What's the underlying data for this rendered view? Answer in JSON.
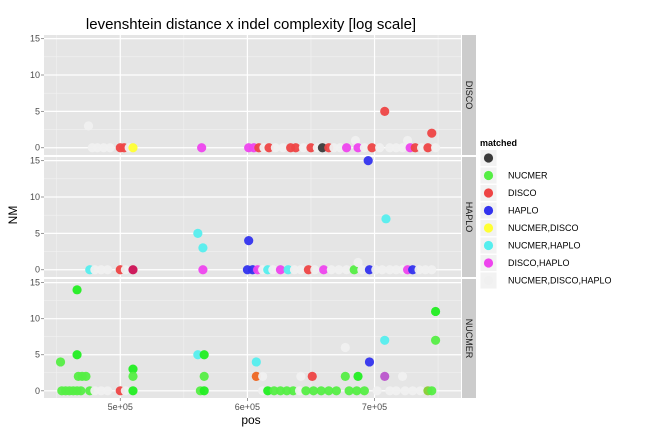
{
  "chart_data": {
    "type": "scatter",
    "title": "levenshtein distance x indel complexity [log scale]",
    "xlabel": "pos",
    "ylabel": "NM",
    "x_ticks": [
      {
        "value": 500000,
        "label": "5e+05"
      },
      {
        "value": 600000,
        "label": "6e+05"
      },
      {
        "value": 700000,
        "label": "7e+05"
      }
    ],
    "y_ticks": [
      0,
      5,
      10,
      15
    ],
    "xlim": [
      440000,
      768000
    ],
    "ylim": [
      -1,
      15.5
    ],
    "legend": {
      "title": "matched",
      "position": "right",
      "entries": [
        {
          "label": "",
          "color": "#3a3a3a"
        },
        {
          "label": "NUCMER",
          "color": "#55ee44"
        },
        {
          "label": "DISCO",
          "color": "#ee4444"
        },
        {
          "label": "HAPLO",
          "color": "#3333ee"
        },
        {
          "label": "NUCMER,DISCO",
          "color": "#ffff33"
        },
        {
          "label": "NUCMER,HAPLO",
          "color": "#55eeee"
        },
        {
          "label": "DISCO,HAPLO",
          "color": "#ee44ee"
        },
        {
          "label": "NUCMER,DISCO,HAPLO",
          "color": "#f0f0f0"
        }
      ]
    },
    "panels": [
      {
        "name": "DISCO",
        "points": [
          {
            "x": 475000,
            "y": 3,
            "color": "#f0f0f0"
          },
          {
            "x": 478000,
            "y": 0,
            "color": "#f0f0f0"
          },
          {
            "x": 482000,
            "y": 0,
            "color": "#f0f0f0"
          },
          {
            "x": 487000,
            "y": 0,
            "color": "#f0f0f0"
          },
          {
            "x": 492000,
            "y": 0,
            "color": "#f0f0f0"
          },
          {
            "x": 500000,
            "y": 0,
            "color": "#ee4444"
          },
          {
            "x": 503000,
            "y": 0,
            "color": "#ee4444"
          },
          {
            "x": 507000,
            "y": 0,
            "color": "#f0f0f0"
          },
          {
            "x": 510000,
            "y": 0,
            "color": "#ffff33"
          },
          {
            "x": 564000,
            "y": 0,
            "color": "#ee44ee"
          },
          {
            "x": 601000,
            "y": 0,
            "color": "#ee44ee"
          },
          {
            "x": 605000,
            "y": 0,
            "color": "#ee44ee"
          },
          {
            "x": 609000,
            "y": 0,
            "color": "#ee4444"
          },
          {
            "x": 613000,
            "y": 0,
            "color": "#f0f0f0"
          },
          {
            "x": 617000,
            "y": 0,
            "color": "#ee4444"
          },
          {
            "x": 622000,
            "y": 0,
            "color": "#f0f0f0"
          },
          {
            "x": 628000,
            "y": 0,
            "color": "#f0f0f0"
          },
          {
            "x": 634000,
            "y": 0,
            "color": "#ee4444"
          },
          {
            "x": 638000,
            "y": 0,
            "color": "#ee4444"
          },
          {
            "x": 644000,
            "y": 0,
            "color": "#f0f0f0"
          },
          {
            "x": 650000,
            "y": 0,
            "color": "#ee4444"
          },
          {
            "x": 655000,
            "y": 0,
            "color": "#f0f0f0"
          },
          {
            "x": 659000,
            "y": 0,
            "color": "#3a3a3a"
          },
          {
            "x": 664000,
            "y": 0,
            "color": "#ee4444"
          },
          {
            "x": 668000,
            "y": 0,
            "color": "#f0f0f0"
          },
          {
            "x": 673000,
            "y": 0,
            "color": "#f0f0f0"
          },
          {
            "x": 678000,
            "y": 0,
            "color": "#ee44ee"
          },
          {
            "x": 685000,
            "y": 1,
            "color": "#f0f0f0"
          },
          {
            "x": 687000,
            "y": 0,
            "color": "#ee44ee"
          },
          {
            "x": 692000,
            "y": 0,
            "color": "#f0f0f0"
          },
          {
            "x": 698000,
            "y": 0,
            "color": "#ee4444"
          },
          {
            "x": 704000,
            "y": 0,
            "color": "#f0f0f0"
          },
          {
            "x": 708000,
            "y": 5,
            "color": "#ee4444"
          },
          {
            "x": 712000,
            "y": 0,
            "color": "#f0f0f0"
          },
          {
            "x": 717000,
            "y": 0,
            "color": "#f0f0f0"
          },
          {
            "x": 722000,
            "y": 0,
            "color": "#f0f0f0"
          },
          {
            "x": 726000,
            "y": 1,
            "color": "#f0f0f0"
          },
          {
            "x": 728000,
            "y": 0,
            "color": "#ee44ee"
          },
          {
            "x": 732000,
            "y": 0,
            "color": "#ee4444"
          },
          {
            "x": 737000,
            "y": 0,
            "color": "#f0f0f0"
          },
          {
            "x": 742000,
            "y": 0,
            "color": "#ee4444"
          },
          {
            "x": 745000,
            "y": 2,
            "color": "#ee4444"
          },
          {
            "x": 748000,
            "y": 0,
            "color": "#f0f0f0"
          }
        ]
      },
      {
        "name": "HAPLO",
        "points": [
          {
            "x": 476000,
            "y": 0,
            "color": "#55eeee"
          },
          {
            "x": 480000,
            "y": 0,
            "color": "#f0f0f0"
          },
          {
            "x": 485000,
            "y": 0,
            "color": "#f0f0f0"
          },
          {
            "x": 490000,
            "y": 0,
            "color": "#f0f0f0"
          },
          {
            "x": 500000,
            "y": 0,
            "color": "#ee4444"
          },
          {
            "x": 504000,
            "y": 0,
            "color": "#f0f0f0"
          },
          {
            "x": 510000,
            "y": 0,
            "color": "#cc1155"
          },
          {
            "x": 561000,
            "y": 5,
            "color": "#55eeee"
          },
          {
            "x": 565000,
            "y": 3,
            "color": "#55eeee"
          },
          {
            "x": 565000,
            "y": 0,
            "color": "#ee44ee"
          },
          {
            "x": 601000,
            "y": 4,
            "color": "#3333ee"
          },
          {
            "x": 600000,
            "y": 0,
            "color": "#3333ee"
          },
          {
            "x": 604000,
            "y": 0,
            "color": "#3333ee"
          },
          {
            "x": 608000,
            "y": 0,
            "color": "#ee44ee"
          },
          {
            "x": 612000,
            "y": 0,
            "color": "#f0f0f0"
          },
          {
            "x": 616000,
            "y": 0,
            "color": "#55eeee"
          },
          {
            "x": 620000,
            "y": 0,
            "color": "#f0f0f0"
          },
          {
            "x": 626000,
            "y": 0,
            "color": "#ee44ee"
          },
          {
            "x": 632000,
            "y": 0,
            "color": "#55eeee"
          },
          {
            "x": 637000,
            "y": 0,
            "color": "#f0f0f0"
          },
          {
            "x": 642000,
            "y": 0,
            "color": "#f0f0f0"
          },
          {
            "x": 648000,
            "y": 0,
            "color": "#ee4444"
          },
          {
            "x": 653000,
            "y": 0,
            "color": "#f0f0f0"
          },
          {
            "x": 660000,
            "y": 0,
            "color": "#ee44ee"
          },
          {
            "x": 666000,
            "y": 0,
            "color": "#f0f0f0"
          },
          {
            "x": 672000,
            "y": 0,
            "color": "#f0f0f0"
          },
          {
            "x": 678000,
            "y": 0,
            "color": "#f0f0f0"
          },
          {
            "x": 684000,
            "y": 0,
            "color": "#55ee44"
          },
          {
            "x": 687000,
            "y": 1,
            "color": "#f0f0f0"
          },
          {
            "x": 690000,
            "y": 0,
            "color": "#f0f0f0"
          },
          {
            "x": 695000,
            "y": 15,
            "color": "#3333ee"
          },
          {
            "x": 696000,
            "y": 0,
            "color": "#3333ee"
          },
          {
            "x": 701000,
            "y": 0,
            "color": "#f0f0f0"
          },
          {
            "x": 706000,
            "y": 0,
            "color": "#f0f0f0"
          },
          {
            "x": 709000,
            "y": 7,
            "color": "#55eeee"
          },
          {
            "x": 712000,
            "y": 0,
            "color": "#f0f0f0"
          },
          {
            "x": 717000,
            "y": 0,
            "color": "#f0f0f0"
          },
          {
            "x": 722000,
            "y": 0,
            "color": "#f0f0f0"
          },
          {
            "x": 726000,
            "y": 0,
            "color": "#ee44ee"
          },
          {
            "x": 730000,
            "y": 0,
            "color": "#3333ee"
          },
          {
            "x": 735000,
            "y": 0,
            "color": "#f0f0f0"
          },
          {
            "x": 740000,
            "y": 0,
            "color": "#f0f0f0"
          },
          {
            "x": 745000,
            "y": 0,
            "color": "#f0f0f0"
          }
        ]
      },
      {
        "name": "NUCMER",
        "points": [
          {
            "x": 453000,
            "y": 4,
            "color": "#55ee44"
          },
          {
            "x": 454000,
            "y": 0,
            "color": "#55ee44"
          },
          {
            "x": 457000,
            "y": 0,
            "color": "#55ee44"
          },
          {
            "x": 460000,
            "y": 0,
            "color": "#55ee44"
          },
          {
            "x": 463000,
            "y": 0,
            "color": "#55ee44"
          },
          {
            "x": 466000,
            "y": 0,
            "color": "#55ee44"
          },
          {
            "x": 469000,
            "y": 0,
            "color": "#55ee44"
          },
          {
            "x": 466000,
            "y": 14,
            "color": "#22ee22"
          },
          {
            "x": 466000,
            "y": 5,
            "color": "#22ee22"
          },
          {
            "x": 467000,
            "y": 2,
            "color": "#55ee44"
          },
          {
            "x": 470000,
            "y": 2,
            "color": "#55ee44"
          },
          {
            "x": 473000,
            "y": 2,
            "color": "#55ee44"
          },
          {
            "x": 476000,
            "y": 0,
            "color": "#55ee44"
          },
          {
            "x": 480000,
            "y": 0,
            "color": "#f0f0f0"
          },
          {
            "x": 485000,
            "y": 0,
            "color": "#f0f0f0"
          },
          {
            "x": 490000,
            "y": 0,
            "color": "#f0f0f0"
          },
          {
            "x": 500000,
            "y": 0,
            "color": "#ee4444"
          },
          {
            "x": 504000,
            "y": 0,
            "color": "#f0f0f0"
          },
          {
            "x": 510000,
            "y": 3,
            "color": "#22ee22"
          },
          {
            "x": 510000,
            "y": 2,
            "color": "#55ee44"
          },
          {
            "x": 510000,
            "y": 0,
            "color": "#22ee22"
          },
          {
            "x": 561000,
            "y": 5,
            "color": "#55eeee"
          },
          {
            "x": 566000,
            "y": 5,
            "color": "#22ee22"
          },
          {
            "x": 566000,
            "y": 2,
            "color": "#55ee44"
          },
          {
            "x": 563000,
            "y": 0,
            "color": "#55ee44"
          },
          {
            "x": 566000,
            "y": 0,
            "color": "#22ee22"
          },
          {
            "x": 607000,
            "y": 4,
            "color": "#55eeee"
          },
          {
            "x": 607000,
            "y": 2,
            "color": "#ee6622"
          },
          {
            "x": 612000,
            "y": 2,
            "color": "#f0f0f0"
          },
          {
            "x": 612000,
            "y": 0,
            "color": "#f0f0f0"
          },
          {
            "x": 616000,
            "y": 0,
            "color": "#22ee22"
          },
          {
            "x": 621000,
            "y": 0,
            "color": "#55ee44"
          },
          {
            "x": 626000,
            "y": 0,
            "color": "#55ee44"
          },
          {
            "x": 631000,
            "y": 0,
            "color": "#55ee44"
          },
          {
            "x": 636000,
            "y": 0,
            "color": "#55ee44"
          },
          {
            "x": 641000,
            "y": 0,
            "color": "#f0f0f0"
          },
          {
            "x": 646000,
            "y": 0,
            "color": "#55ee44"
          },
          {
            "x": 642000,
            "y": 2,
            "color": "#f0f0f0"
          },
          {
            "x": 651000,
            "y": 2,
            "color": "#ee4444"
          },
          {
            "x": 652000,
            "y": 0,
            "color": "#55ee44"
          },
          {
            "x": 658000,
            "y": 0,
            "color": "#55ee44"
          },
          {
            "x": 664000,
            "y": 0,
            "color": "#55ee44"
          },
          {
            "x": 670000,
            "y": 0,
            "color": "#55ee44"
          },
          {
            "x": 677000,
            "y": 6,
            "color": "#f0f0f0"
          },
          {
            "x": 677000,
            "y": 2,
            "color": "#55ee44"
          },
          {
            "x": 687000,
            "y": 2,
            "color": "#22ee22"
          },
          {
            "x": 680000,
            "y": 0,
            "color": "#55ee44"
          },
          {
            "x": 686000,
            "y": 0,
            "color": "#55ee44"
          },
          {
            "x": 692000,
            "y": 0,
            "color": "#55ee44"
          },
          {
            "x": 696000,
            "y": 4,
            "color": "#3333ee"
          },
          {
            "x": 702000,
            "y": 0,
            "color": "#f0f0f0"
          },
          {
            "x": 708000,
            "y": 7,
            "color": "#55eeee"
          },
          {
            "x": 708000,
            "y": 2,
            "color": "#bb55cc"
          },
          {
            "x": 712000,
            "y": 0,
            "color": "#f0f0f0"
          },
          {
            "x": 717000,
            "y": 0,
            "color": "#f0f0f0"
          },
          {
            "x": 722000,
            "y": 2,
            "color": "#f0f0f0"
          },
          {
            "x": 724000,
            "y": 0,
            "color": "#f0f0f0"
          },
          {
            "x": 730000,
            "y": 0,
            "color": "#f0f0f0"
          },
          {
            "x": 736000,
            "y": 0,
            "color": "#f0f0f0"
          },
          {
            "x": 742000,
            "y": 0,
            "color": "#88cc33"
          },
          {
            "x": 745000,
            "y": 0,
            "color": "#55ee44"
          },
          {
            "x": 748000,
            "y": 11,
            "color": "#22ee22"
          },
          {
            "x": 748000,
            "y": 7,
            "color": "#55ee44"
          }
        ]
      }
    ]
  }
}
